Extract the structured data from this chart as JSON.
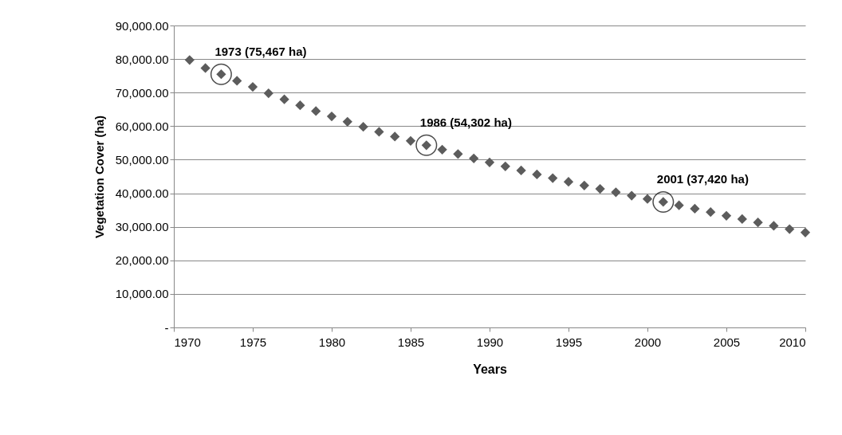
{
  "chart_data": {
    "type": "scatter",
    "xlabel": "Years",
    "ylabel": "Vegetation Cover (ha)",
    "x": [
      1971,
      1972,
      1973,
      1974,
      1975,
      1976,
      1977,
      1978,
      1979,
      1980,
      1981,
      1982,
      1983,
      1984,
      1985,
      1986,
      1987,
      1988,
      1989,
      1990,
      1991,
      1992,
      1993,
      1994,
      1995,
      1996,
      1997,
      1998,
      1999,
      2000,
      2001,
      2002,
      2003,
      2004,
      2005,
      2006,
      2007,
      2008,
      2009,
      2010
    ],
    "series": [
      {
        "color": "#5c5c5c",
        "values": [
          79700,
          77300,
          75467,
          73500,
          71700,
          69800,
          68000,
          66200,
          64500,
          62900,
          61300,
          59800,
          58300,
          56900,
          55600,
          54302,
          53000,
          51700,
          50400,
          49200,
          48000,
          46800,
          45600,
          44500,
          43400,
          42300,
          41300,
          40300,
          39300,
          38300,
          37420,
          36400,
          35400,
          34400,
          33300,
          32300,
          31300,
          30300,
          29300,
          28300
        ]
      }
    ],
    "marker": "diamond",
    "grid": "y",
    "xlim": [
      1970,
      2010
    ],
    "xticks": [
      1970,
      1975,
      1980,
      1985,
      1990,
      1995,
      2000,
      2005,
      2010
    ],
    "ylim": [
      0,
      90000
    ],
    "yticks": [
      {
        "value": 0,
        "label": "-"
      },
      {
        "value": 10000,
        "label": "10,000.00"
      },
      {
        "value": 20000,
        "label": "20,000.00"
      },
      {
        "value": 30000,
        "label": "30,000.00"
      },
      {
        "value": 40000,
        "label": "40,000.00"
      },
      {
        "value": 50000,
        "label": "50,000.00"
      },
      {
        "value": 60000,
        "label": "60,000.00"
      },
      {
        "value": 70000,
        "label": "70,000.00"
      },
      {
        "value": 80000,
        "label": "80,000.00"
      },
      {
        "value": 90000,
        "label": "90,000.00"
      }
    ],
    "annotations": [
      {
        "text": "1973 (75,467 ha)",
        "x": 1973,
        "y": 75467
      },
      {
        "text": "1986 (54,302 ha)",
        "x": 1986,
        "y": 54302
      },
      {
        "text": "2001 (37,420 ha)",
        "x": 2001,
        "y": 37420
      }
    ]
  }
}
